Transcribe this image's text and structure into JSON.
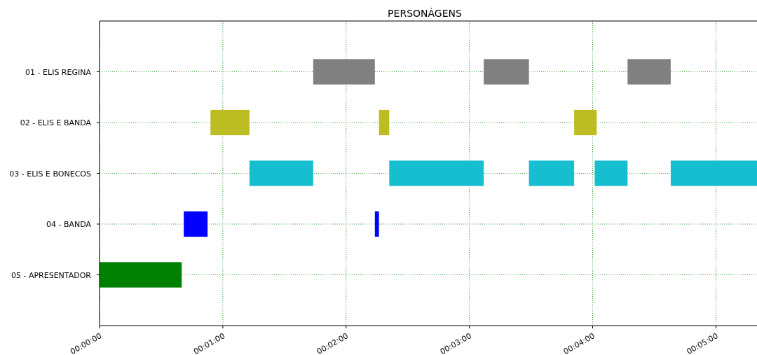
{
  "chart_data": {
    "type": "bar",
    "orientation": "horizontal",
    "title": "PERSONÁGENS",
    "categories": [
      "01 - ELIS REGINA",
      "02 - ELIS E BANDA",
      "03 - ELIS E BONECOS",
      "04 - BANDA",
      "05 - APRESENTADOR"
    ],
    "series": [
      {
        "colors": [
          "#808080",
          "#bcbd22",
          "#17becf",
          "#0000ff",
          "#008000"
        ],
        "base": [
          104,
          54,
          73,
          41,
          0
        ],
        "values": [
          30,
          19,
          31,
          11.6,
          40
        ]
      },
      {
        "colors": [
          "#808080",
          "#bcbd22",
          "#17becf",
          "#0000ff",
          null
        ],
        "base": [
          187,
          136,
          141,
          134,
          null
        ],
        "values": [
          22,
          5,
          46,
          2,
          null
        ]
      },
      {
        "colors": [
          "#808080",
          "#bcbd22",
          "#17becf",
          null,
          null
        ],
        "base": [
          257,
          231,
          209,
          null,
          null
        ],
        "values": [
          21,
          11,
          22,
          null,
          null
        ]
      },
      {
        "colors": [
          null,
          null,
          "#17becf",
          null,
          null
        ],
        "base": [
          null,
          null,
          241,
          null,
          null
        ],
        "values": [
          null,
          null,
          16,
          null,
          null
        ]
      },
      {
        "colors": [
          null,
          null,
          "#17becf",
          null,
          null
        ],
        "base": [
          null,
          null,
          278,
          null,
          null
        ],
        "values": [
          null,
          null,
          42,
          null,
          null
        ]
      }
    ],
    "xlim": [
      0,
      320
    ],
    "xticks": [
      {
        "value": 0,
        "label": "00:00:00"
      },
      {
        "value": 60,
        "label": "00:01:00"
      },
      {
        "value": 120,
        "label": "00:02:00"
      },
      {
        "value": 180,
        "label": "00:03:00"
      },
      {
        "value": 240,
        "label": "00:04:00"
      },
      {
        "value": 300,
        "label": "00:05:00"
      }
    ],
    "grid": true
  }
}
